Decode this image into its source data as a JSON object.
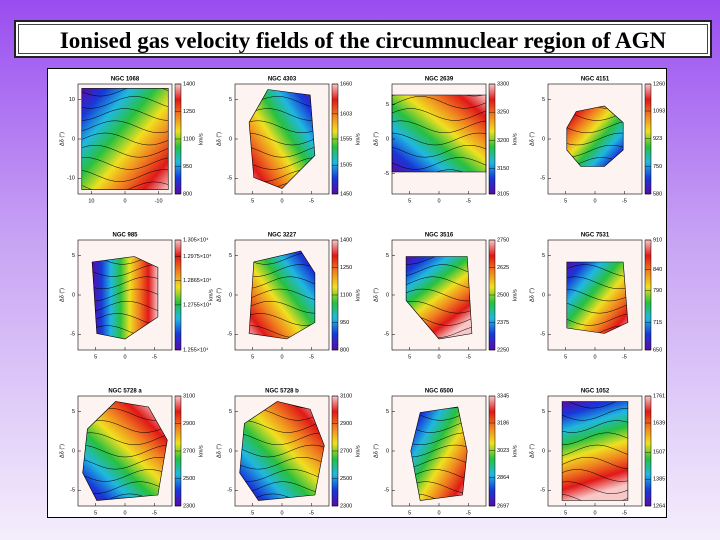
{
  "title": "Ionised gas velocity fields of the circumnuclear region of AGN",
  "y_axis_label": "Δδ (″)",
  "cbar_label": "km/s",
  "panels": [
    {
      "name": "NGC 1068",
      "ylim": [
        -14,
        14
      ],
      "yticks": [
        10,
        0,
        -10
      ],
      "xlim": [
        14,
        -14
      ],
      "xticks": [
        10,
        0,
        -10
      ],
      "clim": [
        800,
        1400
      ],
      "cticks": [
        1400,
        1250,
        1100,
        950,
        800
      ]
    },
    {
      "name": "NGC 4303",
      "ylim": [
        -7,
        7
      ],
      "yticks": [
        5,
        0,
        -5
      ],
      "xlim": [
        8,
        -8
      ],
      "xticks": [
        5,
        0,
        -5
      ],
      "clim": [
        1450,
        1660
      ],
      "cticks": [
        1660,
        1603,
        1555,
        1505,
        1450
      ]
    },
    {
      "name": "NGC 2639",
      "ylim": [
        -8,
        8
      ],
      "yticks": [
        5,
        0,
        -5
      ],
      "xlim": [
        8,
        -8
      ],
      "xticks": [
        5,
        0,
        -5
      ],
      "clim": [
        3105,
        3300
      ],
      "cticks": [
        3300,
        3250,
        3200,
        3150,
        3105
      ]
    },
    {
      "name": "NGC 4151",
      "ylim": [
        -7,
        7
      ],
      "yticks": [
        5,
        0,
        -5
      ],
      "xlim": [
        8,
        -8
      ],
      "xticks": [
        5,
        0,
        -5
      ],
      "clim": [
        580,
        1260
      ],
      "cticks": [
        1260,
        1093,
        923,
        750,
        580
      ]
    },
    {
      "name": "NGC 985",
      "ylim": [
        -7,
        7
      ],
      "yticks": [
        5,
        0,
        -5
      ],
      "xlim": [
        8,
        -8
      ],
      "xticks": [
        5,
        0,
        -5
      ],
      "clim": [
        12550,
        13050
      ],
      "cticks": [
        {
          "value": 13050,
          "label": "1.305×10⁴"
        },
        {
          "value": 12975,
          "label": "1.2975×10⁴"
        },
        {
          "value": 12865,
          "label": "1.2865×10⁴"
        },
        {
          "value": 12755,
          "label": "1.2755×10⁴"
        },
        {
          "value": 12550,
          "label": "1.255×10⁴"
        }
      ]
    },
    {
      "name": "NGC 3227",
      "ylim": [
        -7,
        7
      ],
      "yticks": [
        5,
        0,
        -5
      ],
      "xlim": [
        8,
        -8
      ],
      "xticks": [
        5,
        0,
        -5
      ],
      "clim": [
        800,
        1400
      ],
      "cticks": [
        1400,
        1250,
        1100,
        950,
        800
      ]
    },
    {
      "name": "NGC 3516",
      "ylim": [
        -7,
        7
      ],
      "yticks": [
        5,
        0,
        -5
      ],
      "xlim": [
        8,
        -8
      ],
      "xticks": [
        5,
        0,
        -5
      ],
      "clim": [
        2250,
        2750
      ],
      "cticks": [
        2750,
        2625,
        2500,
        2375,
        2250
      ]
    },
    {
      "name": "NGC 7531",
      "ylim": [
        -7,
        7
      ],
      "yticks": [
        5,
        0,
        -5
      ],
      "xlim": [
        8,
        -8
      ],
      "xticks": [
        5,
        0,
        -5
      ],
      "clim": [
        650,
        910
      ],
      "cticks": [
        910,
        840,
        790,
        715,
        650
      ]
    },
    {
      "name": "NGC 5728 a",
      "ylim": [
        -7,
        7
      ],
      "yticks": [
        5,
        0,
        -5
      ],
      "xlim": [
        8,
        -8
      ],
      "xticks": [
        5,
        0,
        -5
      ],
      "clim": [
        2300,
        3100
      ],
      "cticks": [
        3100,
        2900,
        2700,
        2500,
        2300
      ]
    },
    {
      "name": "NGC 5728 b",
      "ylim": [
        -7,
        7
      ],
      "yticks": [
        5,
        0,
        -5
      ],
      "xlim": [
        8,
        -8
      ],
      "xticks": [
        5,
        0,
        -5
      ],
      "clim": [
        2300,
        3100
      ],
      "cticks": [
        3100,
        2900,
        2700,
        2500,
        2300
      ]
    },
    {
      "name": "NGC 6500",
      "ylim": [
        -7,
        7
      ],
      "yticks": [
        5,
        0,
        -5
      ],
      "xlim": [
        8,
        -8
      ],
      "xticks": [
        5,
        0,
        -5
      ],
      "clim": [
        2697,
        3345
      ],
      "cticks": [
        3345,
        3186,
        3023,
        2864,
        2697
      ]
    },
    {
      "name": "NGC 1052",
      "ylim": [
        -7,
        7
      ],
      "yticks": [
        5,
        0,
        -5
      ],
      "xlim": [
        8,
        -8
      ],
      "xticks": [
        5,
        0,
        -5
      ],
      "clim": [
        1264,
        1761
      ],
      "cticks": [
        1761,
        1639,
        1507,
        1385,
        1264
      ]
    }
  ]
}
